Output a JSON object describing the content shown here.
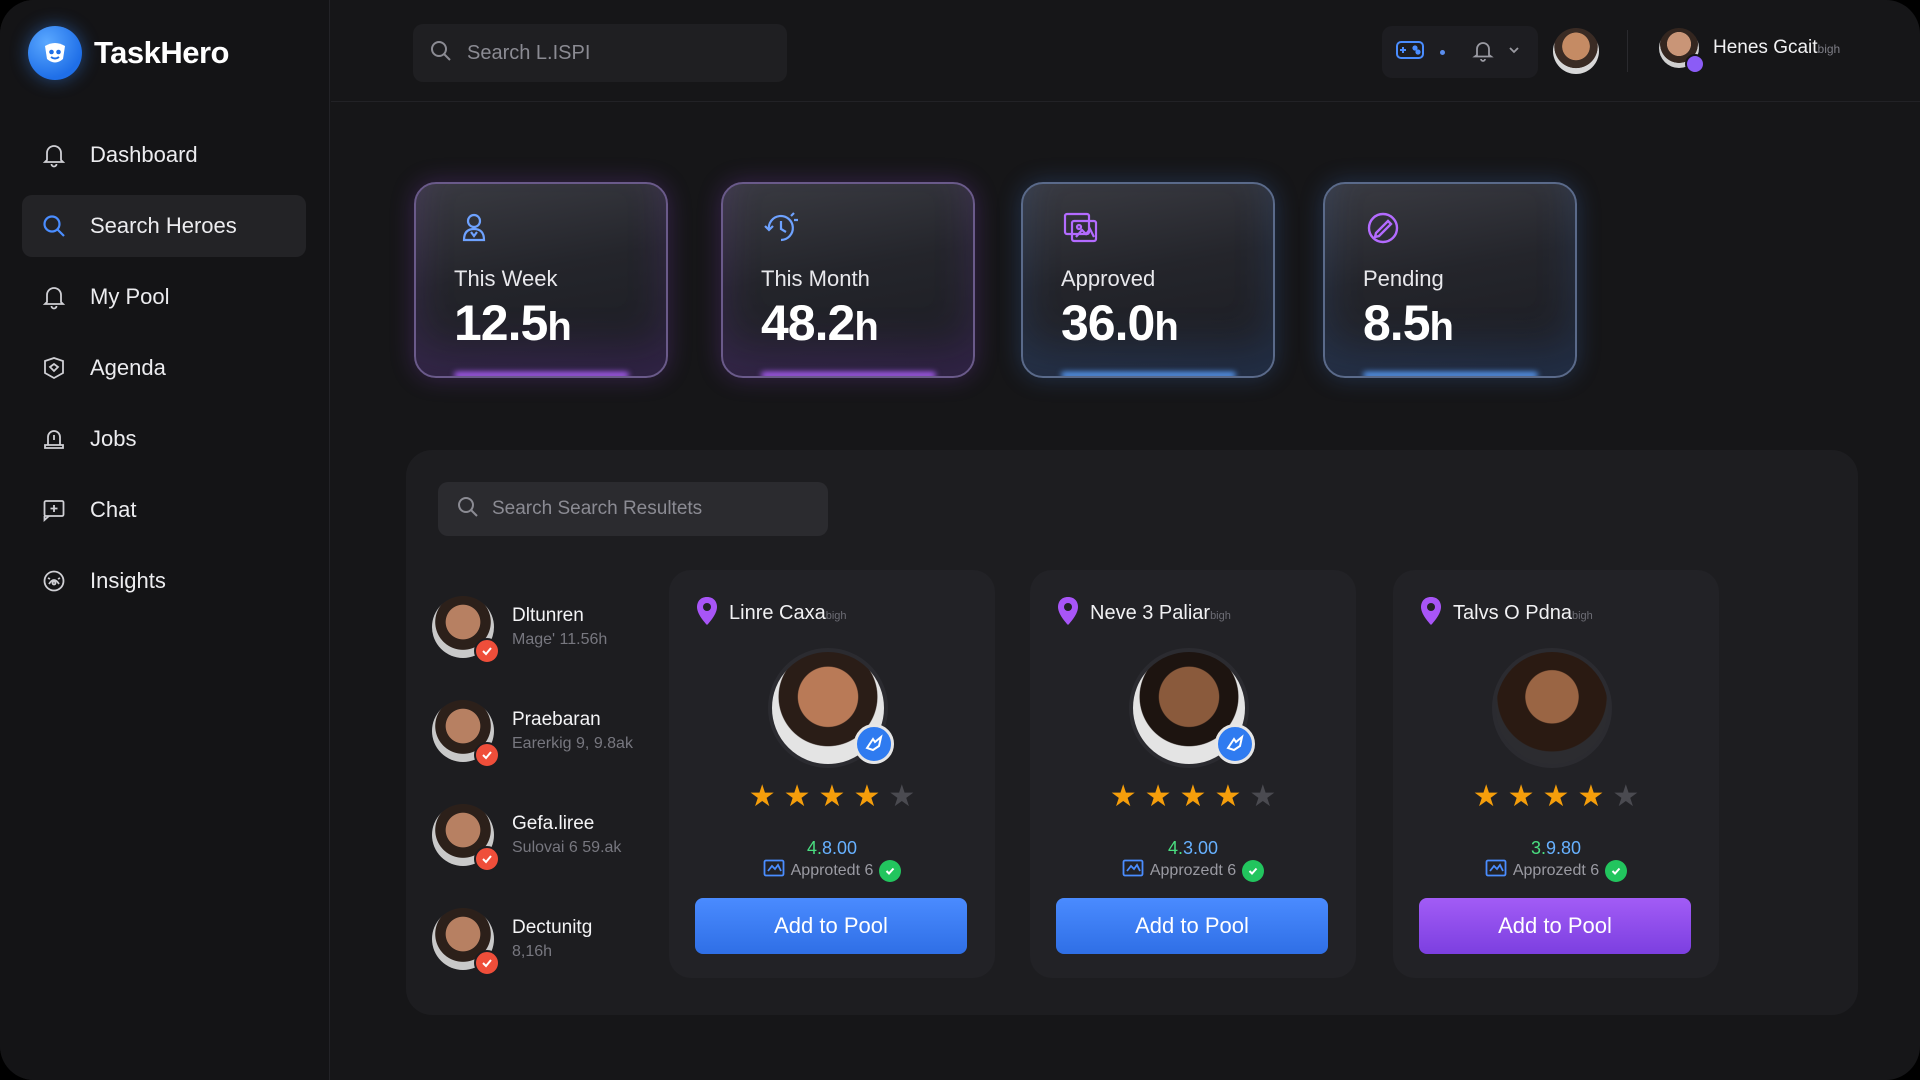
{
  "app": {
    "name": "TaskHero"
  },
  "sidebar": {
    "items": [
      {
        "label": "Dashboard",
        "icon": "bell-icon",
        "active": false
      },
      {
        "label": "Search Heroes",
        "icon": "search-icon",
        "active": true
      },
      {
        "label": "My Pool",
        "icon": "bell-icon",
        "active": false
      },
      {
        "label": "Agenda",
        "icon": "badge-icon",
        "active": false
      },
      {
        "label": "Jobs",
        "icon": "alert-icon",
        "active": false
      },
      {
        "label": "Chat",
        "icon": "chat-icon",
        "active": false
      },
      {
        "label": "Insights",
        "icon": "gauge-icon",
        "active": false
      }
    ]
  },
  "header": {
    "search_placeholder": "Search L.ISPI",
    "user_name": "Henes Gcait",
    "user_suffix": "bigh"
  },
  "stats": [
    {
      "label": "This Week",
      "value": "12.5",
      "unit": "h",
      "accent": "#b060ff"
    },
    {
      "label": "This Month",
      "value": "48.2",
      "unit": "h",
      "accent": "#b060ff"
    },
    {
      "label": "Approved",
      "value": "36.0",
      "unit": "h",
      "accent": "#5aa0ff"
    },
    {
      "label": "Pending",
      "value": "8.5",
      "unit": "h",
      "accent": "#5aa0ff"
    }
  ],
  "results": {
    "search_placeholder": "Search Search Resultets",
    "list": [
      {
        "name": "Dltunren",
        "meta": "Mage' 11.56h"
      },
      {
        "name": "Praebaran",
        "meta": "Earerkig 9, 9.8ak"
      },
      {
        "name": "Gefa.liree",
        "meta": "Sulovai 6 59.ak"
      },
      {
        "name": "Dectunitg",
        "meta": "8,16h"
      }
    ],
    "cards": [
      {
        "location": "Linre Caxa",
        "loc_suffix": "bigh",
        "rating": 4,
        "score_a": "4.",
        "score_b": "8.00",
        "approved": "Approtedt 6",
        "button": "Add to Pool",
        "button_color": "#3b7cf5"
      },
      {
        "location": "Neve 3 Paliar",
        "loc_suffix": "bigh",
        "rating": 4,
        "score_a": "4.",
        "score_b": "3.00",
        "approved": "Approzedt 6",
        "button": "Add to Pool",
        "button_color": "#3b7cf5"
      },
      {
        "location": "Talvs O Pdna",
        "loc_suffix": "bigh",
        "rating": 4,
        "score_a": "3.",
        "score_b": "9.80",
        "approved": "Approzedt 6",
        "button": "Add to Pool",
        "button_color": "#8b4ef0"
      }
    ]
  }
}
